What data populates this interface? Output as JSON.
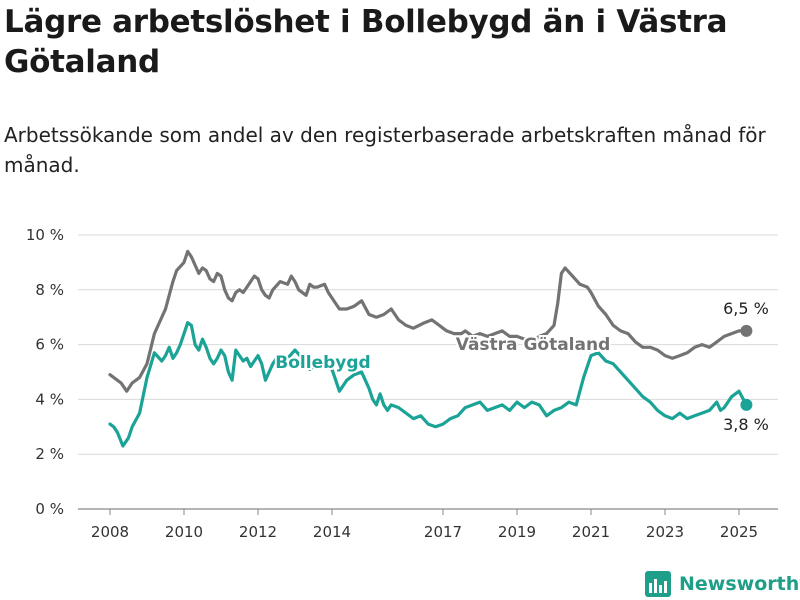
{
  "title": "Lägre arbetslöshet i Bollebygd än i Västra Götaland",
  "subtitle": "Arbetssökande som andel av den registerbaserade arbetskraften månad för månad.",
  "brand": "Newsworthy",
  "colors": {
    "bollebygd": "#1aa396",
    "vastra_gotaland": "#737373",
    "grid": "#d9d9d9"
  },
  "chart_data": {
    "type": "line",
    "ylim": [
      0,
      10
    ],
    "y_ticks": [
      0,
      2,
      4,
      6,
      8,
      10
    ],
    "y_tick_labels": [
      "0 %",
      "2 %",
      "4 %",
      "6 %",
      "8 %",
      "10 %"
    ],
    "x_ticks": [
      2008,
      2010,
      2012,
      2014,
      2017,
      2019,
      2021,
      2023,
      2025
    ],
    "x_tick_labels": [
      "2008",
      "2010",
      "2012",
      "2014",
      "2017",
      "2019",
      "2021",
      "2023",
      "2025"
    ],
    "series": [
      {
        "name": "Västra Götaland",
        "end_label": "6,5 %",
        "x": [
          2008.0,
          2008.3,
          2008.45,
          2008.6,
          2008.8,
          2009.0,
          2009.2,
          2009.5,
          2009.7,
          2009.8,
          2010.0,
          2010.1,
          2010.2,
          2010.4,
          2010.5,
          2010.6,
          2010.7,
          2010.8,
          2010.9,
          2011.0,
          2011.1,
          2011.2,
          2011.3,
          2011.4,
          2011.5,
          2011.6,
          2011.7,
          2011.9,
          2012.0,
          2012.1,
          2012.2,
          2012.3,
          2012.4,
          2012.6,
          2012.8,
          2012.9,
          2013.0,
          2013.1,
          2013.3,
          2013.4,
          2013.5,
          2013.6,
          2013.8,
          2013.9,
          2014.0,
          2014.2,
          2014.4,
          2014.6,
          2014.8,
          2015.0,
          2015.2,
          2015.4,
          2015.6,
          2015.8,
          2016.0,
          2016.2,
          2016.5,
          2016.7,
          2016.9,
          2017.0,
          2017.1,
          2017.3,
          2017.5,
          2017.6,
          2017.8,
          2018.0,
          2018.2,
          2018.4,
          2018.6,
          2018.8,
          2019.0,
          2019.2,
          2019.4,
          2019.6,
          2019.8,
          2020.0,
          2020.1,
          2020.2,
          2020.3,
          2020.5,
          2020.7,
          2020.9,
          2021.0,
          2021.2,
          2021.4,
          2021.6,
          2021.8,
          2022.0,
          2022.2,
          2022.4,
          2022.6,
          2022.8,
          2023.0,
          2023.2,
          2023.4,
          2023.6,
          2023.8,
          2024.0,
          2024.2,
          2024.4,
          2024.6,
          2024.8,
          2025.0,
          2025.2
        ],
        "values": [
          4.9,
          4.6,
          4.3,
          4.6,
          4.8,
          5.3,
          6.4,
          7.3,
          8.3,
          8.7,
          9.0,
          9.4,
          9.2,
          8.6,
          8.8,
          8.7,
          8.4,
          8.3,
          8.6,
          8.5,
          8.0,
          7.7,
          7.6,
          7.9,
          8.0,
          7.9,
          8.1,
          8.5,
          8.4,
          8.0,
          7.8,
          7.7,
          8.0,
          8.3,
          8.2,
          8.5,
          8.3,
          8.0,
          7.8,
          8.2,
          8.1,
          8.1,
          8.2,
          7.9,
          7.7,
          7.3,
          7.3,
          7.4,
          7.6,
          7.1,
          7.0,
          7.1,
          7.3,
          6.9,
          6.7,
          6.6,
          6.8,
          6.9,
          6.7,
          6.6,
          6.5,
          6.4,
          6.4,
          6.5,
          6.3,
          6.4,
          6.3,
          6.4,
          6.5,
          6.3,
          6.3,
          6.2,
          6.1,
          6.3,
          6.4,
          6.7,
          7.5,
          8.6,
          8.8,
          8.5,
          8.2,
          8.1,
          7.9,
          7.4,
          7.1,
          6.7,
          6.5,
          6.4,
          6.1,
          5.9,
          5.9,
          5.8,
          5.6,
          5.5,
          5.6,
          5.7,
          5.9,
          6.0,
          5.9,
          6.1,
          6.3,
          6.4,
          6.5,
          6.5
        ]
      },
      {
        "name": "Bollebygd",
        "end_label": "3,8 %",
        "x": [
          2008.0,
          2008.1,
          2008.2,
          2008.35,
          2008.5,
          2008.6,
          2008.8,
          2009.0,
          2009.2,
          2009.4,
          2009.5,
          2009.6,
          2009.7,
          2009.8,
          2009.9,
          2010.0,
          2010.1,
          2010.2,
          2010.3,
          2010.4,
          2010.5,
          2010.6,
          2010.7,
          2010.8,
          2010.9,
          2011.0,
          2011.1,
          2011.2,
          2011.3,
          2011.4,
          2011.5,
          2011.6,
          2011.7,
          2011.8,
          2011.9,
          2012.0,
          2012.1,
          2012.2,
          2012.3,
          2012.4,
          2012.5,
          2012.6,
          2012.8,
          2013.0,
          2013.2,
          2013.4,
          2013.6,
          2013.8,
          2014.0,
          2014.1,
          2014.2,
          2014.4,
          2014.6,
          2014.8,
          2014.9,
          2015.0,
          2015.1,
          2015.2,
          2015.3,
          2015.4,
          2015.5,
          2015.6,
          2015.8,
          2016.0,
          2016.2,
          2016.4,
          2016.6,
          2016.8,
          2017.0,
          2017.2,
          2017.4,
          2017.6,
          2017.8,
          2018.0,
          2018.2,
          2018.4,
          2018.6,
          2018.8,
          2019.0,
          2019.2,
          2019.4,
          2019.6,
          2019.8,
          2020.0,
          2020.2,
          2020.3,
          2020.4,
          2020.6,
          2020.8,
          2021.0,
          2021.2,
          2021.4,
          2021.6,
          2021.8,
          2022.0,
          2022.2,
          2022.4,
          2022.6,
          2022.8,
          2023.0,
          2023.2,
          2023.4,
          2023.6,
          2023.8,
          2024.0,
          2024.2,
          2024.4,
          2024.5,
          2024.6,
          2024.8,
          2025.0,
          2025.2
        ],
        "values": [
          3.1,
          3.0,
          2.8,
          2.3,
          2.6,
          3.0,
          3.5,
          4.8,
          5.7,
          5.4,
          5.6,
          5.9,
          5.5,
          5.7,
          6.0,
          6.4,
          6.8,
          6.7,
          6.0,
          5.8,
          6.2,
          5.9,
          5.5,
          5.3,
          5.5,
          5.8,
          5.6,
          5.0,
          4.7,
          5.8,
          5.6,
          5.4,
          5.5,
          5.2,
          5.4,
          5.6,
          5.3,
          4.7,
          5.0,
          5.3,
          5.5,
          5.3,
          5.5,
          5.8,
          5.5,
          5.1,
          5.3,
          5.2,
          5.1,
          4.7,
          4.3,
          4.7,
          4.9,
          5.0,
          4.7,
          4.4,
          4.0,
          3.8,
          4.2,
          3.8,
          3.6,
          3.8,
          3.7,
          3.5,
          3.3,
          3.4,
          3.1,
          3.0,
          3.1,
          3.3,
          3.4,
          3.7,
          3.8,
          3.9,
          3.6,
          3.7,
          3.8,
          3.6,
          3.9,
          3.7,
          3.9,
          3.8,
          3.4,
          3.6,
          3.7,
          3.8,
          3.9,
          3.8,
          4.8,
          5.6,
          5.7,
          5.4,
          5.3,
          5.0,
          4.7,
          4.4,
          4.1,
          3.9,
          3.6,
          3.4,
          3.3,
          3.5,
          3.3,
          3.4,
          3.5,
          3.6,
          3.9,
          3.6,
          3.7,
          4.1,
          4.3,
          3.8
        ]
      }
    ]
  }
}
